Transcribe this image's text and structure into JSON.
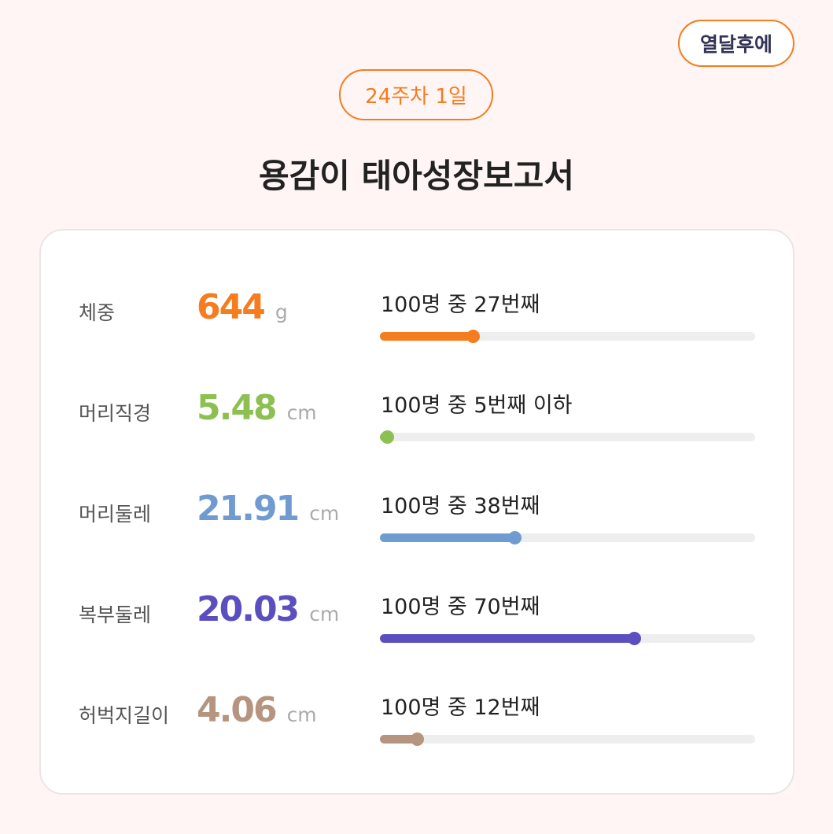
{
  "header": {
    "button": "열달후에",
    "badge": "24주차 1일",
    "title": "용감이 태아성장보고서"
  },
  "bar_range": [
    0,
    100
  ],
  "rows": [
    {
      "label": "체중",
      "value": "644",
      "unit": "g",
      "rank": "100명 중 27번째",
      "bar": 25,
      "color": "#f57c1f"
    },
    {
      "label": "머리직경",
      "value": "5.48",
      "unit": "cm",
      "rank": "100명 중 5번째 이하",
      "bar": 2,
      "color": "#8cc152"
    },
    {
      "label": "머리둘레",
      "value": "21.91",
      "unit": "cm",
      "rank": "100명 중 38번째",
      "bar": 36,
      "color": "#6f9bd1"
    },
    {
      "label": "복부둘레",
      "value": "20.03",
      "unit": "cm",
      "rank": "100명 중 70번째",
      "bar": 68,
      "color": "#5b4fc0"
    },
    {
      "label": "허벅지길이",
      "value": "4.06",
      "unit": "cm",
      "rank": "100명 중 12번째",
      "bar": 10,
      "color": "#b59580"
    }
  ]
}
